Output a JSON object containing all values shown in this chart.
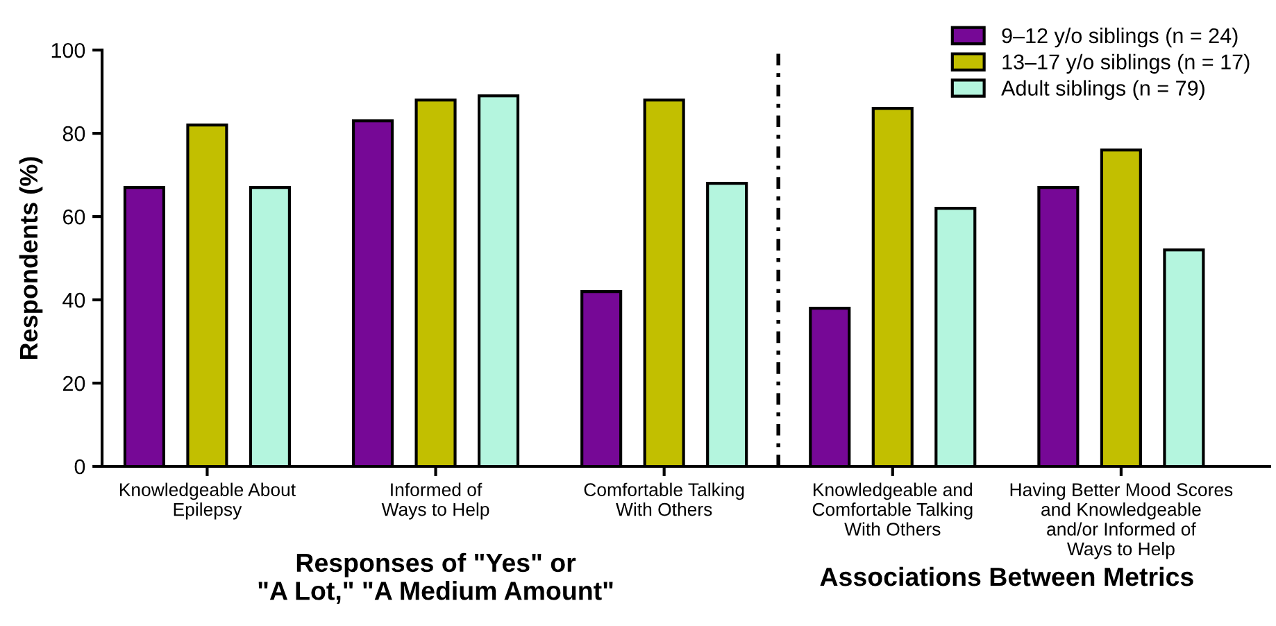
{
  "chart_data": {
    "type": "bar",
    "ylabel": "Respondents (%)",
    "categories": [
      "Knowledgeable About\nEpilepsy",
      "Informed of\nWays to Help",
      "Comfortable Talking\nWith Others",
      "Knowledgeable and\nComfortable Talking\nWith Others",
      "Having Better Mood Scores\nand Knowledgeable\nand/or Informed of\nWays to Help"
    ],
    "series": [
      {
        "name": "9–12 y/o siblings (n = 24)",
        "color": "#760896",
        "values": [
          67,
          83,
          42,
          38,
          67
        ]
      },
      {
        "name": "13–17 y/o siblings (n = 17)",
        "color": "#c2bf00",
        "values": [
          82,
          88,
          88,
          86,
          76
        ]
      },
      {
        "name": "Adult siblings (n = 79)",
        "color": "#b4f5de",
        "values": [
          67,
          89,
          68,
          62,
          52
        ]
      }
    ],
    "ylim": [
      0,
      100
    ],
    "yticks": [
      0,
      20,
      40,
      60,
      80,
      100
    ],
    "annotations": [
      "Responses of \"Yes\" or\n\"A Lot,\" \"A Medium Amount\"",
      "Associations Between Metrics"
    ],
    "grid": false,
    "legend": "top right"
  }
}
